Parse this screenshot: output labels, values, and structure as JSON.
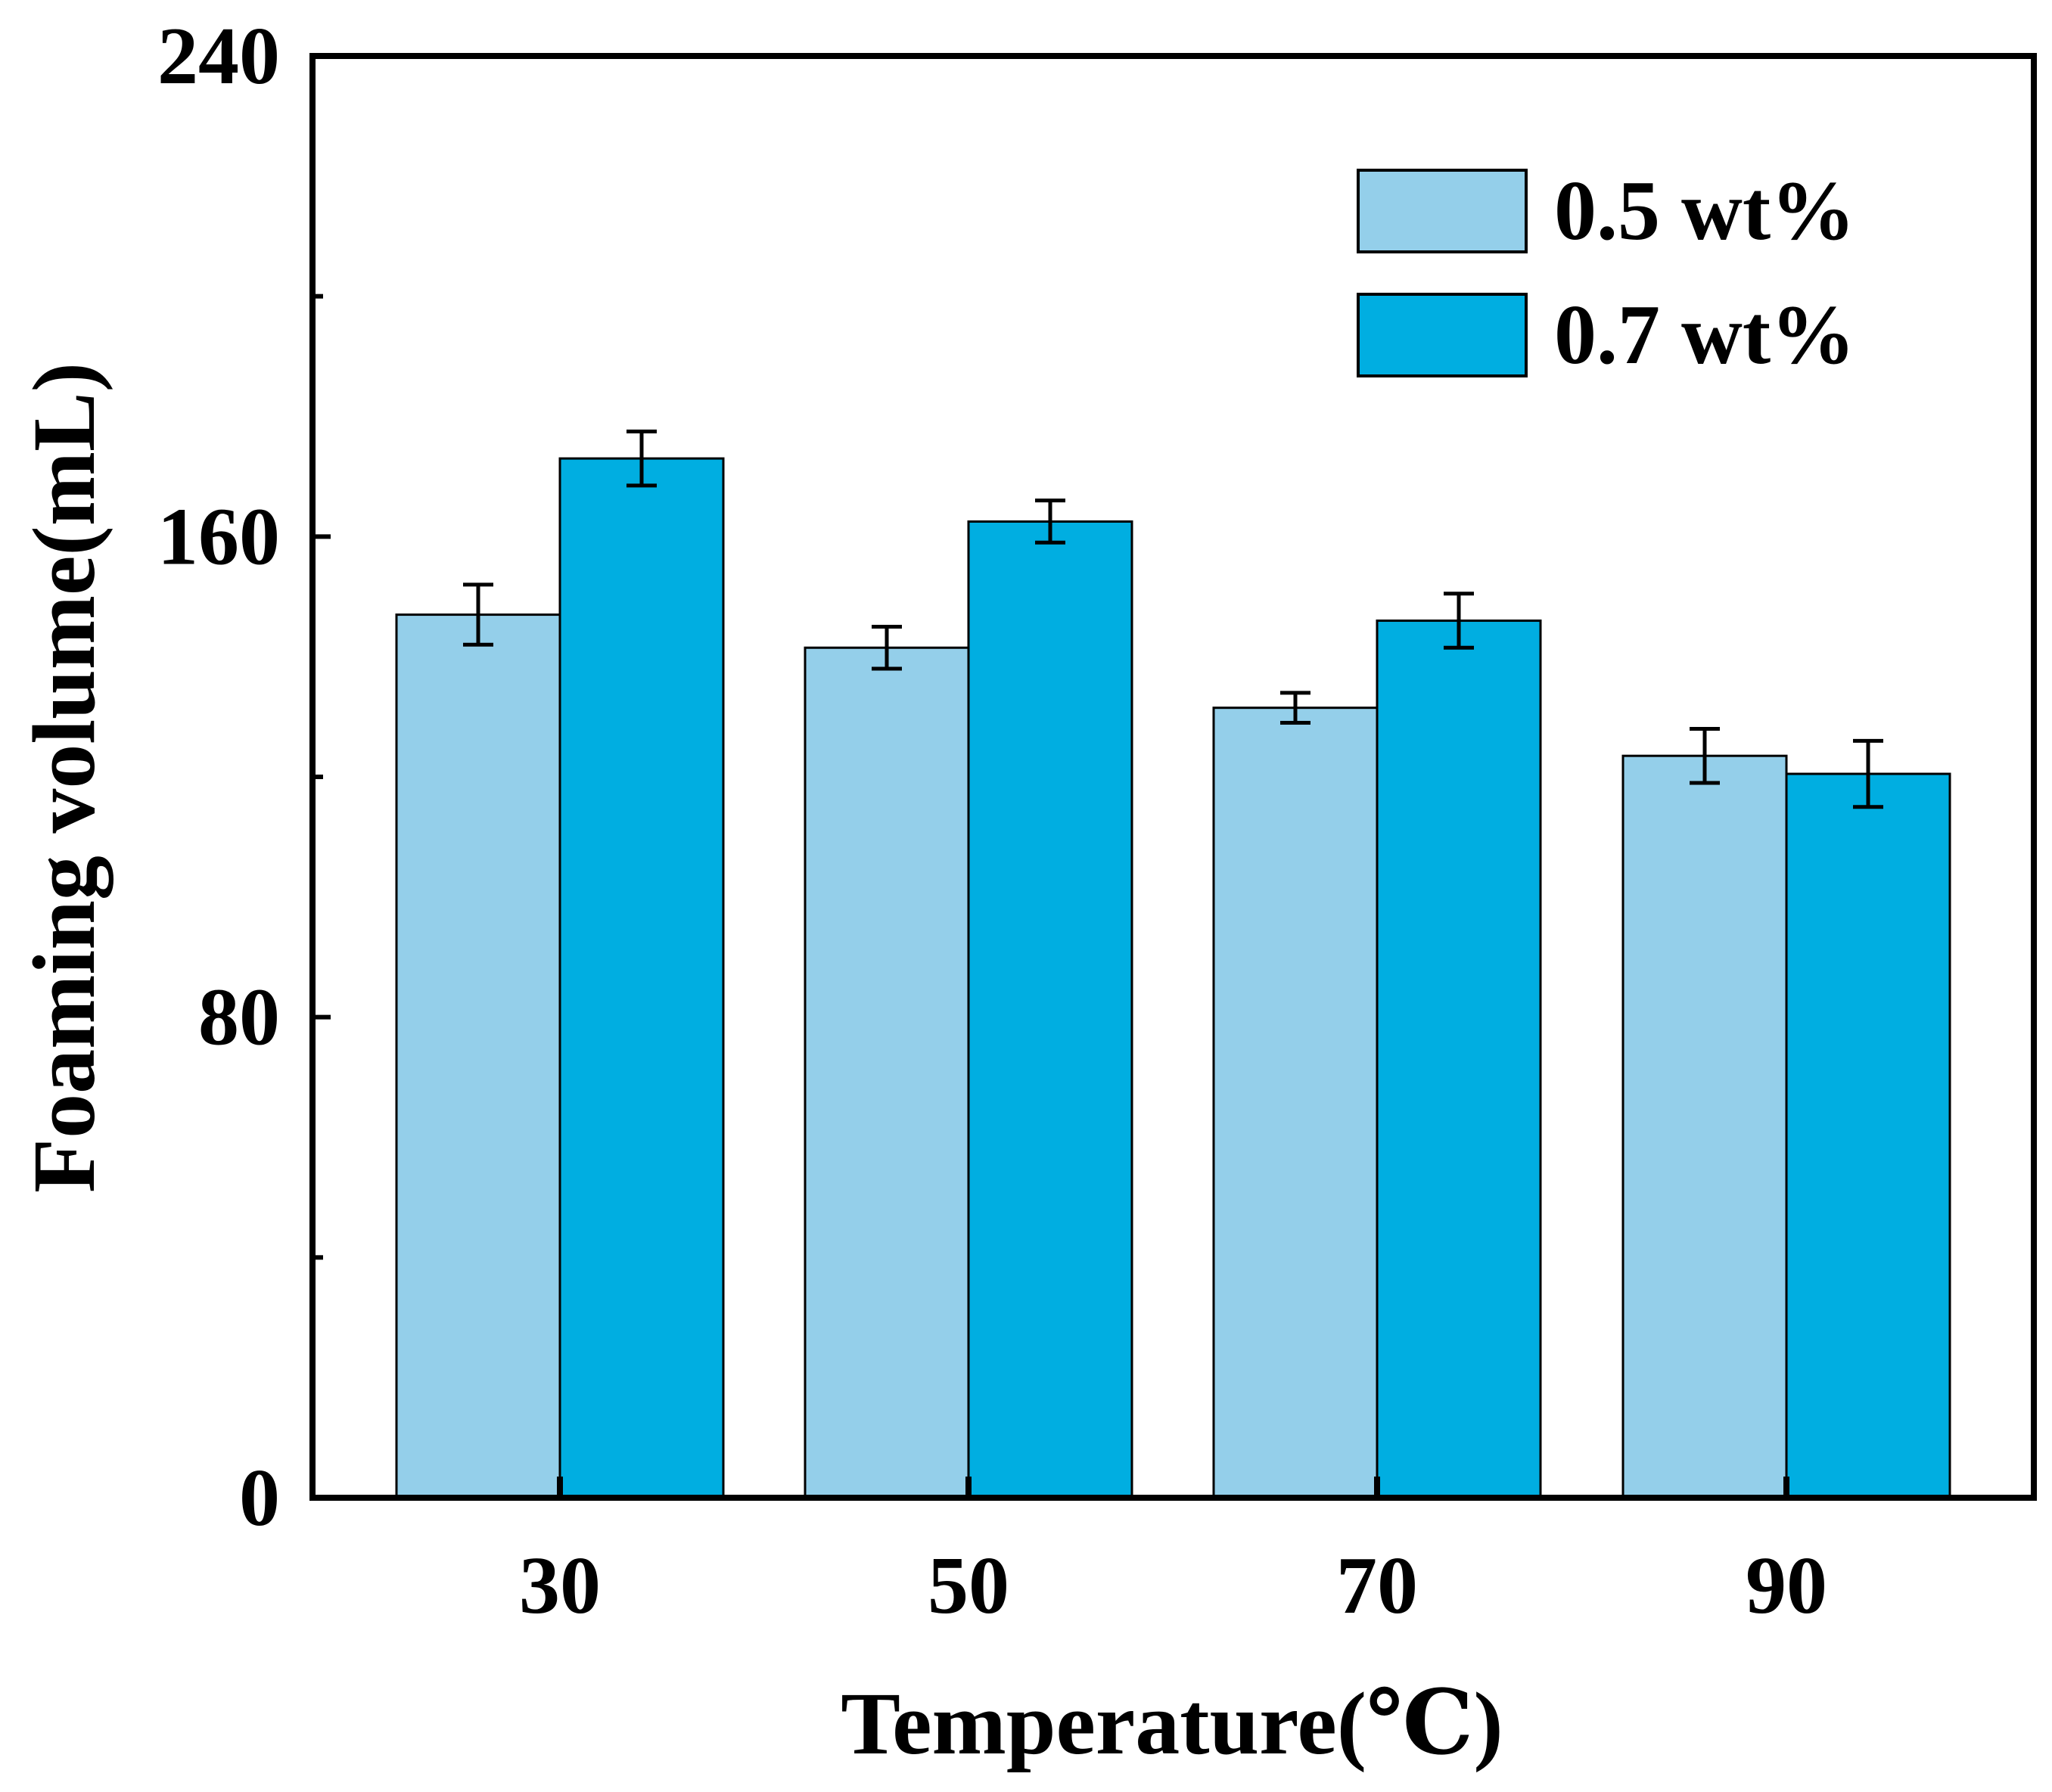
{
  "chart_data": {
    "type": "bar",
    "title": "",
    "xlabel": "Temperature(℃)",
    "ylabel": "Foaming volume(mL)",
    "categories": [
      "30",
      "50",
      "70",
      "90"
    ],
    "series": [
      {
        "name": "0.5 wt%",
        "color": "#94CFEA",
        "values": [
          147,
          141.5,
          131.5,
          123.5
        ],
        "errors": [
          5,
          3.5,
          2.5,
          4.5
        ]
      },
      {
        "name": "0.7 wt%",
        "color": "#00AEE1",
        "values": [
          173,
          162.5,
          146,
          120.5
        ],
        "errors": [
          4.5,
          3.5,
          4.5,
          5.5
        ]
      }
    ],
    "ylim": [
      0,
      240
    ],
    "y_ticks": [
      "0",
      "80",
      "160",
      "240"
    ],
    "y_minor_ticks": [
      40,
      120,
      200
    ],
    "grid": false,
    "legend_position": "top-right"
  }
}
